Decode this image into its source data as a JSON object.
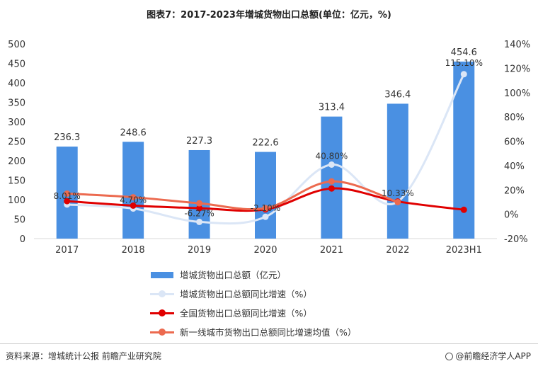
{
  "title": "图表7：2017-2023年增城货物出口总额(单位：亿元，%)",
  "chart_data": {
    "type": "bar",
    "categories": [
      "2017",
      "2018",
      "2019",
      "2020",
      "2021",
      "2022",
      "2023H1"
    ],
    "y_left": {
      "ticks": [
        "0",
        "50",
        "100",
        "150",
        "200",
        "250",
        "300",
        "350",
        "400",
        "450",
        "500"
      ],
      "ylim": [
        0,
        500
      ]
    },
    "y_right": {
      "ticks": [
        "-20%",
        "0%",
        "20%",
        "40%",
        "60%",
        "80%",
        "100%",
        "120%",
        "140%"
      ],
      "ylim": [
        -20,
        140
      ]
    },
    "bar_series": {
      "name": "增城货物出口总额（亿元）",
      "values": [
        236.3,
        248.6,
        227.3,
        222.6,
        313.4,
        346.4,
        454.6
      ],
      "labels": [
        "236.3",
        "248.6",
        "227.3",
        "222.6",
        "313.4",
        "346.4",
        "454.6"
      ],
      "color": "#4a90e2"
    },
    "line_series": [
      {
        "name": "增城货物出口总额同比增速（%）",
        "values": [
          8.01,
          4.7,
          -6.27,
          -2.1,
          40.8,
          10.33,
          115.1
        ],
        "labels": [
          "8.01%",
          "4.70%",
          "-6.27%",
          "-2.10%",
          "40.80%",
          "10.33%",
          "115.10%"
        ],
        "color": "#dbe6f6"
      },
      {
        "name": "全国货物出口总额同比增速（%）",
        "values": [
          10.8,
          7.1,
          5.0,
          4.0,
          21.2,
          10.5,
          3.7
        ],
        "color": "#e00000"
      },
      {
        "name": "新一线城市货物出口总额同比增速均值（%）",
        "values": [
          17.0,
          14.0,
          9.0,
          5.0,
          27.0,
          10.0,
          null
        ],
        "color": "#ec6a4f"
      }
    ]
  },
  "footer": {
    "source": "资料来源：增城统计公报 前瞻产业研究院",
    "brand": "@前瞻经济学人APP"
  }
}
